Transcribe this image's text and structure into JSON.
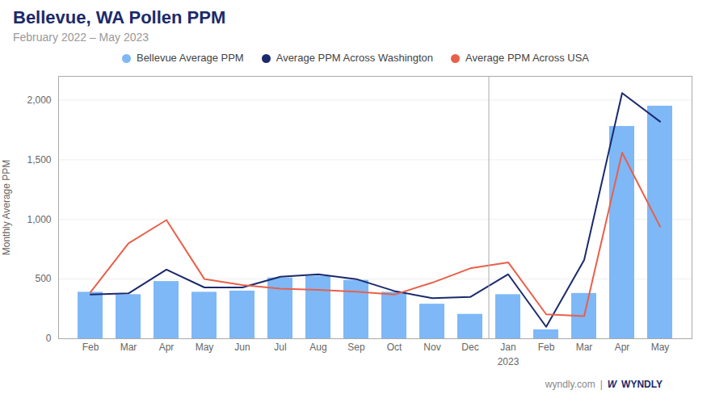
{
  "chart_data": {
    "type": "bar",
    "title": "Bellevue, WA Pollen PPM",
    "subtitle": "February 2022 – May 2023",
    "ylabel": "Monthly Average PPM",
    "categories": [
      "Feb",
      "Mar",
      "Apr",
      "May",
      "Jun",
      "Jul",
      "Aug",
      "Sep",
      "Oct",
      "Nov",
      "Dec",
      "Jan",
      "Feb",
      "Mar",
      "Apr",
      "May"
    ],
    "series": [
      {
        "name": "Bellevue Average PPM",
        "type": "bar",
        "color": "#7EB8F7",
        "values": [
          390,
          370,
          480,
          390,
          400,
          510,
          525,
          490,
          390,
          290,
          205,
          370,
          75,
          380,
          1780,
          1950
        ]
      },
      {
        "name": "Average PPM Across Washington",
        "type": "line",
        "color": "#1B2A6B",
        "values": [
          370,
          380,
          580,
          430,
          430,
          520,
          540,
          500,
          400,
          340,
          350,
          540,
          100,
          660,
          2060,
          1820
        ]
      },
      {
        "name": "Average PPM Across USA",
        "type": "line",
        "color": "#E8604A",
        "values": [
          390,
          800,
          995,
          500,
          450,
          420,
          410,
          395,
          370,
          470,
          590,
          640,
          205,
          190,
          1560,
          940
        ]
      }
    ],
    "ylim": [
      0,
      2200
    ],
    "yticks": [
      0,
      500,
      {
        "value": 1000,
        "label": "1,000"
      },
      {
        "value": 1500,
        "label": "1,500"
      },
      {
        "value": 2000,
        "label": "2,000"
      }
    ],
    "grid": true,
    "legend": "top",
    "annotations": [
      {
        "text": "2023",
        "x": 11
      },
      {
        "text": "wyndly.com"
      },
      {
        "text": "|"
      },
      {
        "text": "W"
      },
      {
        "text": "WYNDLY"
      }
    ]
  }
}
